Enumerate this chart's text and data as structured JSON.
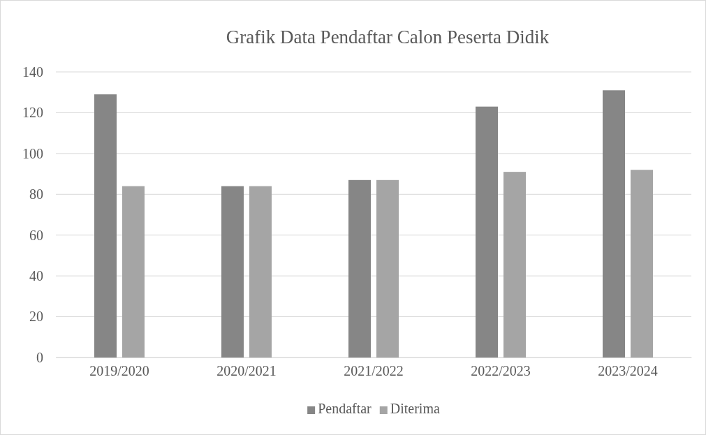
{
  "chart_data": {
    "type": "bar",
    "title": "Grafik Data Pendaftar Calon Peserta Didik",
    "categories": [
      "2019/2020",
      "2020/2021",
      "2021/2022",
      "2022/2023",
      "2023/2024"
    ],
    "series": [
      {
        "name": "Pendaftar",
        "color": "#868686",
        "values": [
          129,
          84,
          87,
          123,
          131
        ]
      },
      {
        "name": "Diterima",
        "color": "#a5a5a5",
        "values": [
          84,
          84,
          87,
          91,
          92
        ]
      }
    ],
    "ylim": [
      0,
      140
    ],
    "yticks": [
      0,
      20,
      40,
      60,
      80,
      100,
      120,
      140
    ],
    "grid": "y",
    "legend": "bottom"
  }
}
